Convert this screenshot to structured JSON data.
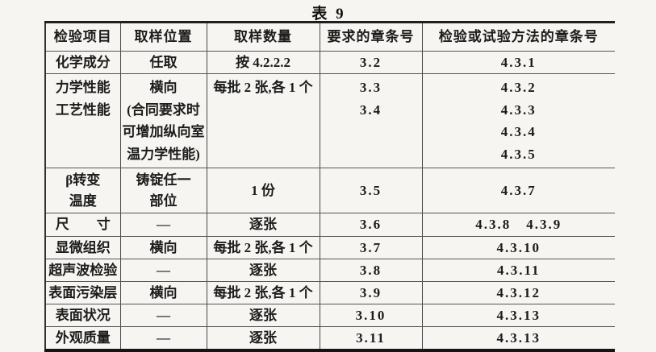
{
  "title": "表 9",
  "table": {
    "headers": [
      "检验项目",
      "取样位置",
      "取样数量",
      "要求的章条号",
      "检验或试验方法的章条号"
    ],
    "rows": [
      {
        "item": "化学成分",
        "location": "任取",
        "quantity": "按 4.2.2.2",
        "req": "3.2",
        "method": "4.3.1"
      },
      {
        "item": "力学性能\n工艺性能",
        "location": "横向\n(合同要求时\n可增加纵向室\n温力学性能)",
        "quantity": "每批 2 张,各 1 个",
        "req": "3.3\n3.4",
        "method": "4.3.2\n4.3.3\n4.3.4\n4.3.5"
      },
      {
        "item": "β转变\n温度",
        "location": "铸锭任一\n部位",
        "quantity": "1 份",
        "req": "3.5",
        "method": "4.3.7"
      },
      {
        "item": "尺　　寸",
        "location": "—",
        "quantity": "逐张",
        "req": "3.6",
        "method": "4.3.8　4.3.9"
      },
      {
        "item": "显微组织",
        "location": "横向",
        "quantity": "每批 2 张,各 1 个",
        "req": "3.7",
        "method": "4.3.10"
      },
      {
        "item": "超声波检验",
        "location": "—",
        "quantity": "逐张",
        "req": "3.8",
        "method": "4.3.11"
      },
      {
        "item": "表面污染层",
        "location": "横向",
        "quantity": "每批 2 张,各 1 个",
        "req": "3.9",
        "method": "4.3.12"
      },
      {
        "item": "表面状况",
        "location": "—",
        "quantity": "逐张",
        "req": "3.10",
        "method": "4.3.13"
      },
      {
        "item": "外观质量",
        "location": "—",
        "quantity": "逐张",
        "req": "3.11",
        "method": "4.3.13"
      }
    ]
  }
}
